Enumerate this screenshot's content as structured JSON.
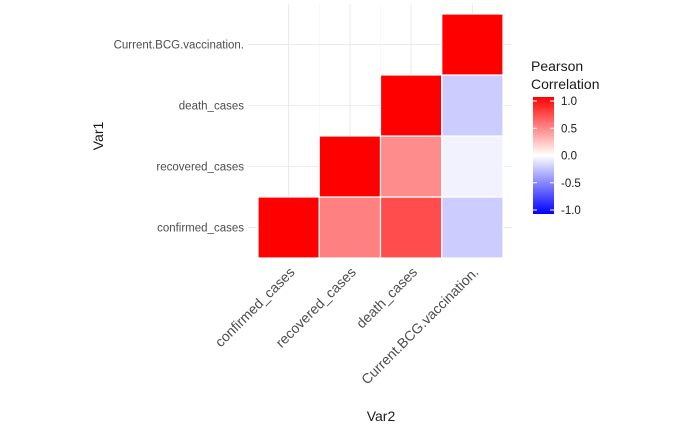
{
  "chart_data": {
    "type": "heatmap",
    "title": "",
    "xlabel": "Var2",
    "ylabel": "Var1",
    "x_categories": [
      "confirmed_cases",
      "recovered_cases",
      "death_cases",
      "Current.BCG.vaccination."
    ],
    "y_categories": [
      "confirmed_cases",
      "recovered_cases",
      "death_cases",
      "Current.BCG.vaccination."
    ],
    "cells": [
      {
        "x": "confirmed_cases",
        "y": "confirmed_cases",
        "value": 1.0
      },
      {
        "x": "recovered_cases",
        "y": "confirmed_cases",
        "value": 0.5
      },
      {
        "x": "death_cases",
        "y": "confirmed_cases",
        "value": 0.7
      },
      {
        "x": "Current.BCG.vaccination.",
        "y": "confirmed_cases",
        "value": -0.2
      },
      {
        "x": "recovered_cases",
        "y": "recovered_cases",
        "value": 1.0
      },
      {
        "x": "death_cases",
        "y": "recovered_cases",
        "value": 0.45
      },
      {
        "x": "Current.BCG.vaccination.",
        "y": "recovered_cases",
        "value": -0.05
      },
      {
        "x": "death_cases",
        "y": "death_cases",
        "value": 1.0
      },
      {
        "x": "Current.BCG.vaccination.",
        "y": "death_cases",
        "value": -0.2
      },
      {
        "x": "Current.BCG.vaccination.",
        "y": "Current.BCG.vaccination.",
        "value": 1.0
      }
    ],
    "legend": {
      "title_lines": [
        "Pearson",
        "Correlation"
      ],
      "ticks": [
        "1.0",
        "0.5",
        "0.0",
        "-0.5",
        "-1.0"
      ],
      "tick_values": [
        1.0,
        0.5,
        0.0,
        -0.5,
        -1.0
      ],
      "limits": [
        -1,
        1
      ],
      "placement": "right"
    },
    "colors": {
      "low": "#0000FF",
      "mid": "#FFFFFF",
      "high": "#FF0000"
    },
    "grid": true
  }
}
